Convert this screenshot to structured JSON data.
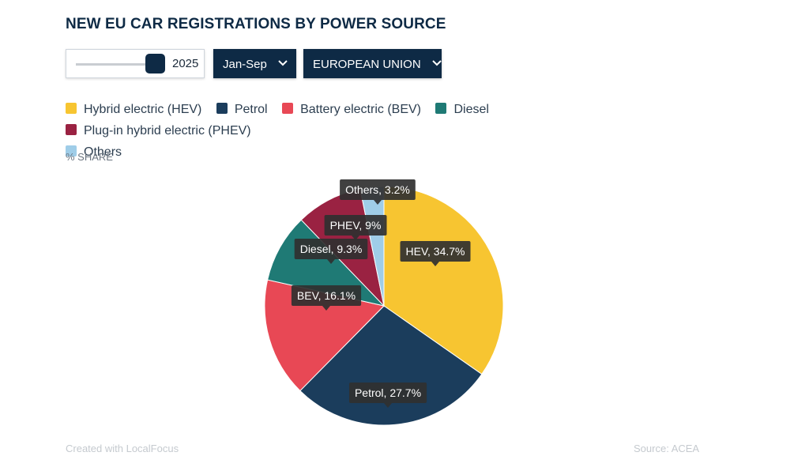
{
  "header": {
    "title": "NEW EU CAR REGISTRATIONS BY POWER SOURCE"
  },
  "controls": {
    "year_slider_value": "2025",
    "period_dropdown": "Jan-Sep",
    "region_dropdown": "EUROPEAN UNION"
  },
  "legend": {
    "items": [
      {
        "label": "Hybrid electric (HEV)",
        "color": "#f7c531"
      },
      {
        "label": "Petrol",
        "color": "#1b3d5c"
      },
      {
        "label": "Battery electric (BEV)",
        "color": "#e84855"
      },
      {
        "label": "Diesel",
        "color": "#1f7a75"
      },
      {
        "label": "Plug-in hybrid electric (PHEV)",
        "color": "#9a2242"
      },
      {
        "label": "Others",
        "color": "#9fcde8"
      }
    ]
  },
  "unit_label": "% SHARE",
  "chart_data": {
    "type": "pie",
    "unit": "% share",
    "slices": [
      {
        "name": "HEV",
        "value": 34.7,
        "label": "HEV, 34.7%",
        "color": "#f7c531"
      },
      {
        "name": "Petrol",
        "value": 27.7,
        "label": "Petrol, 27.7%",
        "color": "#1b3d5c"
      },
      {
        "name": "BEV",
        "value": 16.1,
        "label": "BEV, 16.1%",
        "color": "#e84855"
      },
      {
        "name": "Diesel",
        "value": 9.3,
        "label": "Diesel, 9.3%",
        "color": "#1f7a75"
      },
      {
        "name": "PHEV",
        "value": 9,
        "label": "PHEV, 9%",
        "color": "#9a2242"
      },
      {
        "name": "Others",
        "value": 3.2,
        "label": "Others, 3.2%",
        "color": "#9fcde8"
      }
    ]
  },
  "footer": {
    "credit": "Created with LocalFocus",
    "source": "Source: ACEA"
  }
}
